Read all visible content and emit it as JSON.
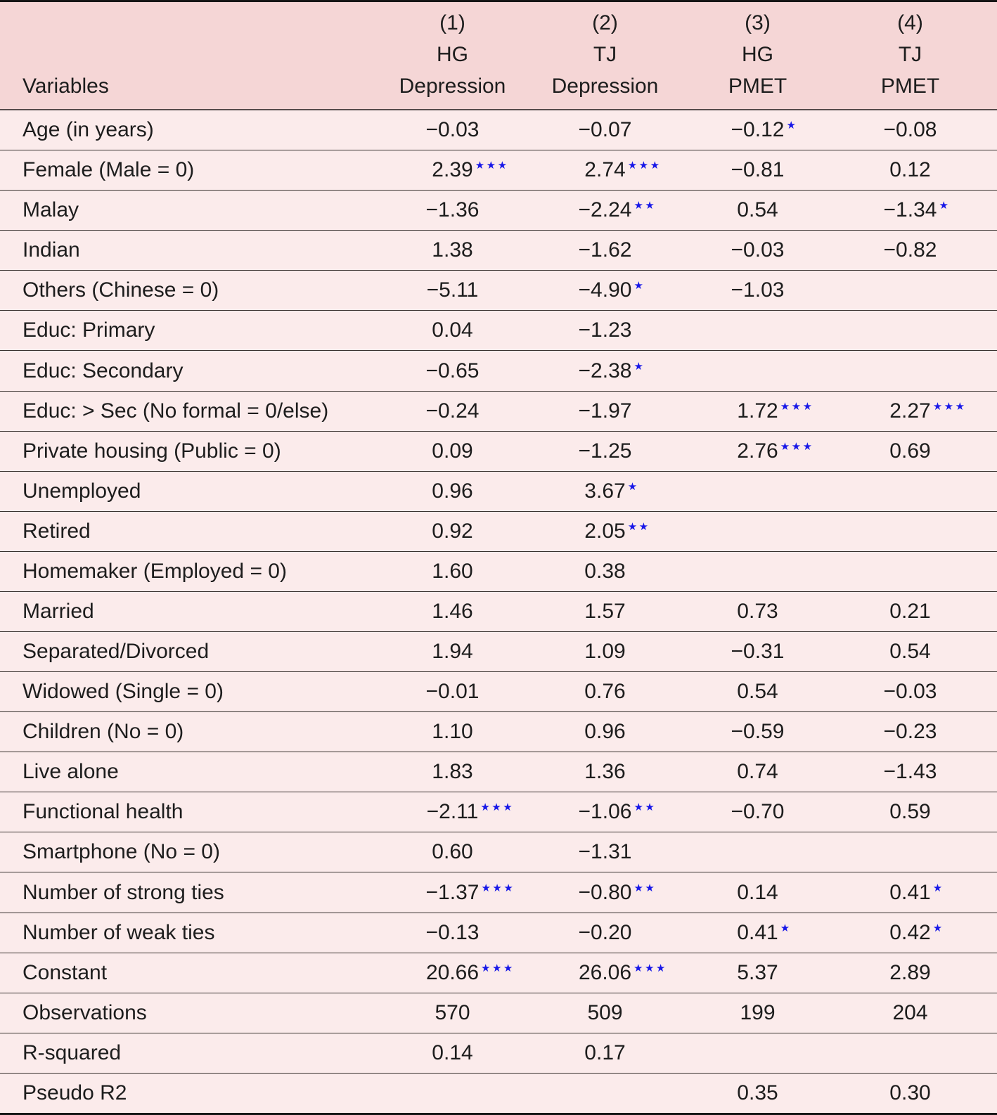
{
  "colors": {
    "header_bg": "#f5d6d6",
    "body_bg": "#fbebeb",
    "star_blue": "#1717e8",
    "text": "#1d1d1d",
    "outer_border": "#161616",
    "row_line": "#38322f"
  },
  "table": {
    "variables_header": "Variables",
    "columns": [
      {
        "num": "(1)",
        "model": "HG",
        "outcome": "Depression"
      },
      {
        "num": "(2)",
        "model": "TJ",
        "outcome": "Depression"
      },
      {
        "num": "(3)",
        "model": "HG",
        "outcome": "PMET"
      },
      {
        "num": "(4)",
        "model": "TJ",
        "outcome": "PMET"
      }
    ],
    "rows": [
      {
        "label": "Age (in years)",
        "cells": [
          {
            "v": "−0.03",
            "s": ""
          },
          {
            "v": "−0.07",
            "s": ""
          },
          {
            "v": "−0.12",
            "s": "*"
          },
          {
            "v": "−0.08",
            "s": ""
          }
        ]
      },
      {
        "label": "Female (Male = 0)",
        "cells": [
          {
            "v": "2.39",
            "s": "***"
          },
          {
            "v": "2.74",
            "s": "***"
          },
          {
            "v": "−0.81",
            "s": ""
          },
          {
            "v": "0.12",
            "s": ""
          }
        ]
      },
      {
        "label": "Malay",
        "cells": [
          {
            "v": "−1.36",
            "s": ""
          },
          {
            "v": "−2.24",
            "s": "**"
          },
          {
            "v": "0.54",
            "s": ""
          },
          {
            "v": "−1.34",
            "s": "*"
          }
        ]
      },
      {
        "label": "Indian",
        "cells": [
          {
            "v": "1.38",
            "s": ""
          },
          {
            "v": "−1.62",
            "s": ""
          },
          {
            "v": "−0.03",
            "s": ""
          },
          {
            "v": "−0.82",
            "s": ""
          }
        ]
      },
      {
        "label": "Others (Chinese = 0)",
        "cells": [
          {
            "v": "−5.11",
            "s": ""
          },
          {
            "v": "−4.90",
            "s": "*"
          },
          {
            "v": "−1.03",
            "s": ""
          },
          {
            "v": "",
            "s": ""
          }
        ]
      },
      {
        "label": "Educ: Primary",
        "cells": [
          {
            "v": "0.04",
            "s": ""
          },
          {
            "v": "−1.23",
            "s": ""
          },
          {
            "v": "",
            "s": ""
          },
          {
            "v": "",
            "s": ""
          }
        ]
      },
      {
        "label": "Educ: Secondary",
        "cells": [
          {
            "v": "−0.65",
            "s": ""
          },
          {
            "v": "−2.38",
            "s": "*"
          },
          {
            "v": "",
            "s": ""
          },
          {
            "v": "",
            "s": ""
          }
        ]
      },
      {
        "label": "Educ: > Sec (No formal = 0/else)",
        "cells": [
          {
            "v": "−0.24",
            "s": ""
          },
          {
            "v": "−1.97",
            "s": ""
          },
          {
            "v": "1.72",
            "s": "***"
          },
          {
            "v": "2.27",
            "s": "***"
          }
        ]
      },
      {
        "label": "Private housing (Public = 0)",
        "cells": [
          {
            "v": "0.09",
            "s": ""
          },
          {
            "v": "−1.25",
            "s": ""
          },
          {
            "v": "2.76",
            "s": "***"
          },
          {
            "v": "0.69",
            "s": ""
          }
        ]
      },
      {
        "label": "Unemployed",
        "cells": [
          {
            "v": "0.96",
            "s": ""
          },
          {
            "v": "3.67",
            "s": "*"
          },
          {
            "v": "",
            "s": ""
          },
          {
            "v": "",
            "s": ""
          }
        ]
      },
      {
        "label": "Retired",
        "cells": [
          {
            "v": "0.92",
            "s": ""
          },
          {
            "v": "2.05",
            "s": "**"
          },
          {
            "v": "",
            "s": ""
          },
          {
            "v": "",
            "s": ""
          }
        ]
      },
      {
        "label": "Homemaker (Employed = 0)",
        "cells": [
          {
            "v": "1.60",
            "s": ""
          },
          {
            "v": "0.38",
            "s": ""
          },
          {
            "v": "",
            "s": ""
          },
          {
            "v": "",
            "s": ""
          }
        ]
      },
      {
        "label": "Married",
        "cells": [
          {
            "v": "1.46",
            "s": ""
          },
          {
            "v": "1.57",
            "s": ""
          },
          {
            "v": "0.73",
            "s": ""
          },
          {
            "v": "0.21",
            "s": ""
          }
        ]
      },
      {
        "label": "Separated/Divorced",
        "cells": [
          {
            "v": "1.94",
            "s": ""
          },
          {
            "v": "1.09",
            "s": ""
          },
          {
            "v": "−0.31",
            "s": ""
          },
          {
            "v": "0.54",
            "s": ""
          }
        ]
      },
      {
        "label": "Widowed (Single = 0)",
        "cells": [
          {
            "v": "−0.01",
            "s": ""
          },
          {
            "v": "0.76",
            "s": ""
          },
          {
            "v": "0.54",
            "s": ""
          },
          {
            "v": "−0.03",
            "s": ""
          }
        ]
      },
      {
        "label": "Children (No = 0)",
        "cells": [
          {
            "v": "1.10",
            "s": ""
          },
          {
            "v": "0.96",
            "s": ""
          },
          {
            "v": "−0.59",
            "s": ""
          },
          {
            "v": "−0.23",
            "s": ""
          }
        ]
      },
      {
        "label": "Live alone",
        "cells": [
          {
            "v": "1.83",
            "s": ""
          },
          {
            "v": "1.36",
            "s": ""
          },
          {
            "v": "0.74",
            "s": ""
          },
          {
            "v": "−1.43",
            "s": ""
          }
        ]
      },
      {
        "label": "Functional health",
        "cells": [
          {
            "v": "−2.11",
            "s": "***"
          },
          {
            "v": "−1.06",
            "s": "**"
          },
          {
            "v": "−0.70",
            "s": ""
          },
          {
            "v": "0.59",
            "s": ""
          }
        ]
      },
      {
        "label": "Smartphone (No = 0)",
        "cells": [
          {
            "v": "0.60",
            "s": ""
          },
          {
            "v": "−1.31",
            "s": ""
          },
          {
            "v": "",
            "s": ""
          },
          {
            "v": "",
            "s": ""
          }
        ]
      },
      {
        "label": "Number of strong ties",
        "cells": [
          {
            "v": "−1.37",
            "s": "***"
          },
          {
            "v": "−0.80",
            "s": "**"
          },
          {
            "v": "0.14",
            "s": ""
          },
          {
            "v": "0.41",
            "s": "*"
          }
        ]
      },
      {
        "label": "Number of weak ties",
        "cells": [
          {
            "v": "−0.13",
            "s": ""
          },
          {
            "v": "−0.20",
            "s": ""
          },
          {
            "v": "0.41",
            "s": "*"
          },
          {
            "v": "0.42",
            "s": "*"
          }
        ]
      },
      {
        "label": "Constant",
        "cells": [
          {
            "v": "20.66",
            "s": "***"
          },
          {
            "v": "26.06",
            "s": "***"
          },
          {
            "v": "5.37",
            "s": ""
          },
          {
            "v": "2.89",
            "s": ""
          }
        ]
      },
      {
        "label": "Observations",
        "cells": [
          {
            "v": "570",
            "s": ""
          },
          {
            "v": "509",
            "s": ""
          },
          {
            "v": "199",
            "s": ""
          },
          {
            "v": "204",
            "s": ""
          }
        ]
      },
      {
        "label": "R-squared",
        "cells": [
          {
            "v": "0.14",
            "s": ""
          },
          {
            "v": "0.17",
            "s": ""
          },
          {
            "v": "",
            "s": ""
          },
          {
            "v": "",
            "s": ""
          }
        ]
      },
      {
        "label": "Pseudo R2",
        "cells": [
          {
            "v": "",
            "s": ""
          },
          {
            "v": "",
            "s": ""
          },
          {
            "v": "0.35",
            "s": ""
          },
          {
            "v": "0.30",
            "s": ""
          }
        ]
      }
    ]
  }
}
